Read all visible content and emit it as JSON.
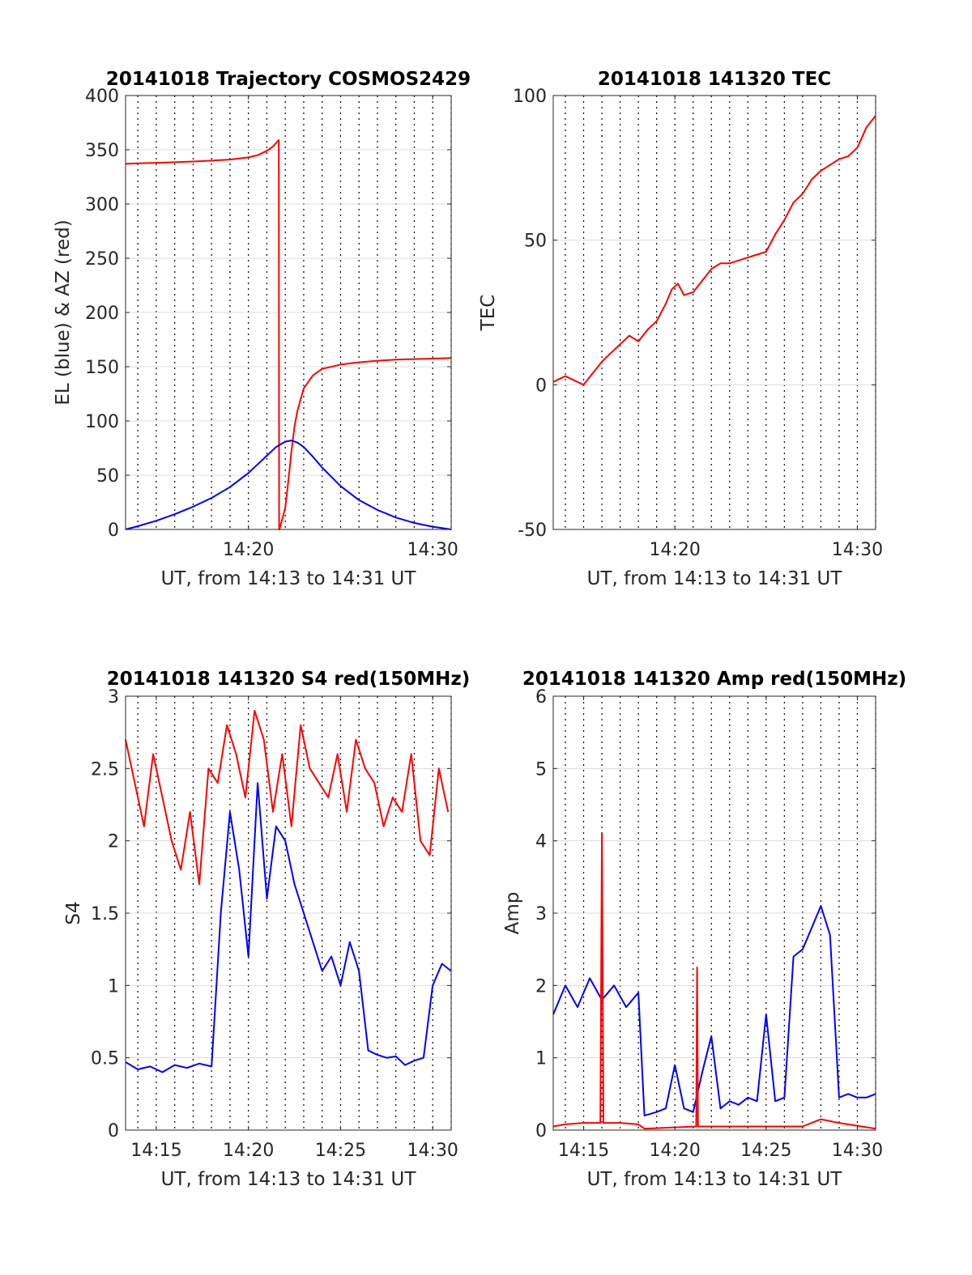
{
  "chart_data": [
    {
      "type": "line",
      "title": "20141018 Trajectory COSMOS2429",
      "xlabel": "UT, from 14:13 to 14:31 UT",
      "ylabel": "EL (blue) & AZ (red)",
      "xlim": [
        "14:13:20",
        "14:31:00"
      ],
      "ylim": [
        0,
        400
      ],
      "xticks": [
        "14:20",
        "14:30"
      ],
      "yticks": [
        0,
        50,
        100,
        150,
        200,
        250,
        300,
        350,
        400
      ],
      "grid": "on",
      "series": [
        {
          "color": "#ff0000",
          "x": [
            "14:13:20",
            "14:14:00",
            "14:15:00",
            "14:16:00",
            "14:17:00",
            "14:18:00",
            "14:19:00",
            "14:20:00",
            "14:20:30",
            "14:21:00",
            "14:21:20",
            "14:21:39",
            "14:21:40",
            "14:21:41",
            "14:22:00",
            "14:22:10",
            "14:22:20",
            "14:22:30",
            "14:22:40",
            "14:23:00",
            "14:23:30",
            "14:24:00",
            "14:25:00",
            "14:26:00",
            "14:27:00",
            "14:28:00",
            "14:29:00",
            "14:30:00",
            "14:31:00"
          ],
          "values": [
            337,
            337.5,
            338,
            338.5,
            339.2,
            340,
            341,
            343,
            345,
            349,
            353,
            359,
            0,
            0,
            20,
            45,
            72,
            95,
            110,
            130,
            142,
            148,
            152,
            154,
            155.5,
            156.5,
            157,
            157.5,
            158
          ]
        },
        {
          "color": "#0000ff",
          "x": [
            "14:13:20",
            "14:14:00",
            "14:15:00",
            "14:16:00",
            "14:17:00",
            "14:18:00",
            "14:19:00",
            "14:20:00",
            "14:21:00",
            "14:21:30",
            "14:22:00",
            "14:22:20",
            "14:22:40",
            "14:23:00",
            "14:23:30",
            "14:24:00",
            "14:25:00",
            "14:26:00",
            "14:27:00",
            "14:28:00",
            "14:29:00",
            "14:30:00",
            "14:31:00"
          ],
          "values": [
            0,
            3,
            8,
            14,
            21,
            29,
            39,
            52,
            68,
            76,
            81,
            82,
            80,
            76,
            67,
            57,
            40,
            27,
            18,
            11,
            6,
            2.5,
            0
          ]
        }
      ]
    },
    {
      "type": "line",
      "title": "20141018 141320 TEC",
      "xlabel": "UT, from 14:13 to 14:31 UT",
      "ylabel": "TEC",
      "xlim": [
        "14:13:20",
        "14:31:00"
      ],
      "ylim": [
        -50,
        100
      ],
      "xticks": [
        "14:20",
        "14:30"
      ],
      "yticks": [
        -50,
        0,
        50,
        100
      ],
      "grid": "on",
      "series": [
        {
          "color": "#ff0000",
          "x": [
            "14:13:20",
            "14:13:40",
            "14:14:00",
            "14:14:20",
            "14:14:40",
            "14:15:00",
            "14:15:30",
            "14:16:00",
            "14:16:30",
            "14:17:00",
            "14:17:30",
            "14:18:00",
            "14:18:30",
            "14:19:00",
            "14:19:30",
            "14:19:50",
            "14:20:10",
            "14:20:30",
            "14:21:00",
            "14:21:30",
            "14:22:00",
            "14:22:30",
            "14:23:00",
            "14:23:30",
            "14:24:00",
            "14:24:30",
            "14:25:00",
            "14:25:30",
            "14:26:00",
            "14:26:30",
            "14:27:00",
            "14:27:30",
            "14:28:00",
            "14:28:30",
            "14:29:00",
            "14:29:30",
            "14:30:00",
            "14:30:30",
            "14:31:00"
          ],
          "values": [
            1,
            2,
            3,
            2,
            1,
            0,
            4,
            8,
            11,
            14,
            17,
            15,
            19,
            22,
            28,
            33,
            35,
            31,
            32,
            36,
            40,
            42,
            42,
            43,
            44,
            45,
            46,
            52,
            57,
            63,
            66,
            71,
            74,
            76,
            78,
            79,
            82,
            89,
            93
          ]
        }
      ]
    },
    {
      "type": "line",
      "title": "20141018 141320 S4 red(150MHz)",
      "xlabel": "UT, from 14:13 to 14:31 UT",
      "ylabel": "S4",
      "xlim": [
        "14:13:20",
        "14:31:00"
      ],
      "ylim": [
        0,
        3
      ],
      "xticks": [
        "14:15",
        "14:20",
        "14:25",
        "14:30"
      ],
      "yticks": [
        0,
        0.5,
        1,
        1.5,
        2,
        2.5,
        3
      ],
      "grid": "on",
      "series": [
        {
          "color": "#ff0000",
          "x": [
            "14:13:20",
            "14:13:50",
            "14:14:20",
            "14:14:50",
            "14:15:20",
            "14:15:50",
            "14:16:20",
            "14:16:50",
            "14:17:20",
            "14:17:50",
            "14:18:20",
            "14:18:50",
            "14:19:20",
            "14:19:50",
            "14:20:20",
            "14:20:50",
            "14:21:20",
            "14:21:50",
            "14:22:20",
            "14:22:50",
            "14:23:20",
            "14:23:50",
            "14:24:20",
            "14:24:50",
            "14:25:20",
            "14:25:50",
            "14:26:20",
            "14:26:50",
            "14:27:20",
            "14:27:50",
            "14:28:20",
            "14:28:50",
            "14:29:20",
            "14:29:50",
            "14:30:20",
            "14:30:50"
          ],
          "values": [
            2.7,
            2.4,
            2.1,
            2.6,
            2.3,
            2.0,
            1.8,
            2.2,
            1.7,
            2.5,
            2.4,
            2.8,
            2.6,
            2.3,
            2.9,
            2.7,
            2.2,
            2.6,
            2.1,
            2.8,
            2.5,
            2.4,
            2.3,
            2.6,
            2.2,
            2.7,
            2.5,
            2.4,
            2.1,
            2.3,
            2.2,
            2.6,
            2.0,
            1.9,
            2.5,
            2.2
          ]
        },
        {
          "color": "#0000ff",
          "x": [
            "14:13:20",
            "14:14:00",
            "14:14:40",
            "14:15:20",
            "14:16:00",
            "14:16:40",
            "14:17:20",
            "14:18:00",
            "14:18:30",
            "14:19:00",
            "14:19:30",
            "14:20:00",
            "14:20:30",
            "14:21:00",
            "14:21:30",
            "14:22:00",
            "14:22:30",
            "14:23:00",
            "14:23:30",
            "14:24:00",
            "14:24:30",
            "14:25:00",
            "14:25:30",
            "14:26:00",
            "14:26:30",
            "14:27:00",
            "14:27:30",
            "14:28:00",
            "14:28:30",
            "14:29:00",
            "14:29:30",
            "14:30:00",
            "14:30:30",
            "14:31:00"
          ],
          "values": [
            0.47,
            0.42,
            0.44,
            0.4,
            0.45,
            0.43,
            0.46,
            0.44,
            1.5,
            2.2,
            1.8,
            1.2,
            2.4,
            1.6,
            2.1,
            2.0,
            1.7,
            1.5,
            1.3,
            1.1,
            1.2,
            1.0,
            1.3,
            1.1,
            0.55,
            0.52,
            0.5,
            0.51,
            0.45,
            0.48,
            0.5,
            1.0,
            1.15,
            1.1
          ]
        }
      ]
    },
    {
      "type": "line",
      "title": "20141018 141320 Amp red(150MHz)",
      "xlabel": "UT, from 14:13 to 14:31 UT",
      "ylabel": "Amp",
      "xlim": [
        "14:13:20",
        "14:31:00"
      ],
      "ylim": [
        0,
        6
      ],
      "xticks": [
        "14:15",
        "14:20",
        "14:25",
        "14:30"
      ],
      "yticks": [
        0,
        1,
        2,
        3,
        4,
        5,
        6
      ],
      "grid": "on",
      "series": [
        {
          "color": "#0000ff",
          "x": [
            "14:13:20",
            "14:14:00",
            "14:14:40",
            "14:15:20",
            "14:16:00",
            "14:16:40",
            "14:17:20",
            "14:18:00",
            "14:18:20",
            "14:19:00",
            "14:19:30",
            "14:20:00",
            "14:20:30",
            "14:21:00",
            "14:21:30",
            "14:22:00",
            "14:22:30",
            "14:23:00",
            "14:23:30",
            "14:24:00",
            "14:24:30",
            "14:25:00",
            "14:25:30",
            "14:26:00",
            "14:26:30",
            "14:27:00",
            "14:27:30",
            "14:28:00",
            "14:28:30",
            "14:29:00",
            "14:29:30",
            "14:30:00",
            "14:30:30",
            "14:31:00"
          ],
          "values": [
            1.6,
            2.0,
            1.7,
            2.1,
            1.8,
            2.0,
            1.7,
            1.9,
            0.2,
            0.25,
            0.3,
            0.9,
            0.3,
            0.25,
            0.8,
            1.3,
            0.3,
            0.4,
            0.35,
            0.45,
            0.4,
            1.6,
            0.4,
            0.45,
            2.4,
            2.5,
            2.8,
            3.1,
            2.7,
            0.45,
            0.5,
            0.45,
            0.45,
            0.5
          ]
        },
        {
          "color": "#ff0000",
          "x": [
            "14:13:20",
            "14:14:00",
            "14:15:00",
            "14:15:55",
            "14:16:00",
            "14:16:05",
            "14:17:00",
            "14:18:00",
            "14:18:20",
            "14:21:10",
            "14:21:13",
            "14:21:16",
            "14:27:00",
            "14:28:00",
            "14:29:00",
            "14:31:00"
          ],
          "values": [
            0.05,
            0.08,
            0.1,
            0.1,
            4.1,
            0.1,
            0.1,
            0.08,
            0.02,
            0.05,
            2.25,
            0.05,
            0.05,
            0.15,
            0.1,
            0.02
          ]
        }
      ]
    }
  ]
}
